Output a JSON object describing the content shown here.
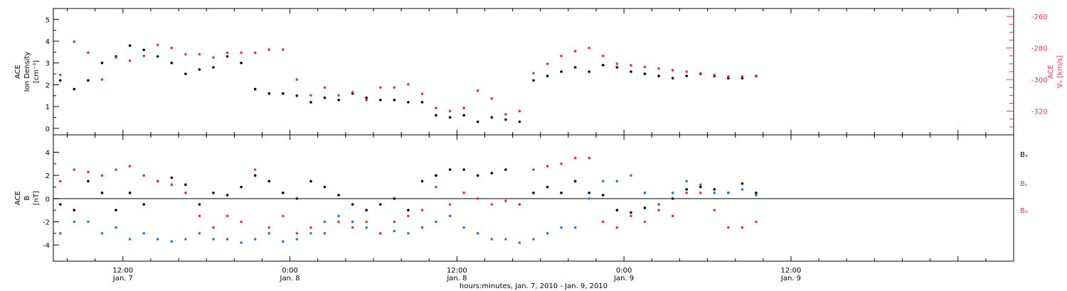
{
  "colors": {
    "black": "#000000",
    "red": "#e0305a",
    "blue": "#1f7fd8"
  },
  "xaxis": {
    "title": "hours:minutes, Jan.  7, 2010 - Jan.  9, 2010",
    "range_hours": [
      -17,
      52
    ],
    "ticks": [
      {
        "hour": -12,
        "time": "12:00",
        "date": "Jan. 7"
      },
      {
        "hour": 0,
        "time": "0:00",
        "date": "Jan. 8"
      },
      {
        "hour": 12,
        "time": "12:00",
        "date": "Jan. 8"
      },
      {
        "hour": 24,
        "time": "0:00",
        "date": "Jan. 9"
      },
      {
        "hour": 36,
        "time": "12:00",
        "date": "Jan. 9"
      }
    ]
  },
  "chart_data": [
    {
      "type": "scatter",
      "panel": "top",
      "left_axis": {
        "label_line1": "ACE",
        "label_line2": "Ion Density",
        "label_line3": "[cm⁻³]",
        "ylim": [
          -0.3,
          5.5
        ],
        "ticks": [
          "0",
          "1",
          "2",
          "3",
          "4",
          "5"
        ]
      },
      "right_axis": {
        "label_line1": "ACE",
        "label_line2": "Vₓ [km/s]",
        "ylim": [
          -335,
          -255
        ],
        "ticks": [
          "-260",
          "-280",
          "-300",
          "-320"
        ]
      },
      "series": [
        {
          "color": "black",
          "axis": "left",
          "x": [
            -16.5,
            -15.5,
            -14.5,
            -13.5,
            -12.5,
            -11.5,
            -10.5,
            -9.5,
            -8.5,
            -7.5,
            -6.5,
            -5.5,
            -4.5,
            -3.5,
            -2.5,
            -1.5,
            -0.5,
            0.5,
            1.5,
            2.5,
            3.5,
            4.5,
            5.5,
            6.5,
            7.5,
            8.5,
            9.5,
            10.5,
            11.5,
            12.5,
            13.5,
            14.5,
            15.5,
            16.5,
            17.5,
            18.5,
            19.5,
            20.5,
            21.5,
            22.5,
            23.5,
            24.5,
            25.5,
            26.5,
            27.5,
            28.5,
            29.5,
            30.5,
            31.5,
            32.5,
            33.5
          ],
          "y": [
            2.2,
            1.8,
            2.2,
            3.0,
            3.3,
            3.8,
            3.6,
            3.3,
            3.0,
            2.5,
            2.7,
            2.8,
            3.3,
            3.0,
            1.8,
            1.6,
            1.6,
            1.5,
            1.2,
            1.4,
            1.3,
            1.6,
            1.4,
            1.3,
            1.3,
            1.2,
            1.2,
            0.6,
            0.5,
            0.6,
            0.3,
            0.5,
            0.4,
            0.3,
            2.2,
            2.4,
            2.6,
            2.8,
            2.6,
            2.9,
            2.8,
            2.6,
            2.5,
            2.4,
            2.3,
            2.4,
            2.5,
            2.4,
            2.3,
            2.3,
            2.4
          ]
        },
        {
          "color": "red",
          "axis": "right",
          "x": [
            -16.5,
            -15.5,
            -14.5,
            -13.5,
            -12.5,
            -11.5,
            -10.5,
            -9.5,
            -8.5,
            -7.5,
            -6.5,
            -5.5,
            -4.5,
            -3.5,
            -2.5,
            -1.5,
            -0.5,
            0.5,
            1.5,
            2.5,
            3.5,
            4.5,
            5.5,
            6.5,
            7.5,
            8.5,
            9.5,
            10.5,
            11.5,
            12.5,
            13.5,
            14.5,
            15.5,
            16.5,
            17.5,
            18.5,
            19.5,
            20.5,
            21.5,
            22.5,
            23.5,
            24.5,
            25.5,
            26.5,
            27.5,
            28.5,
            29.5,
            30.5,
            31.5,
            32.5,
            33.5
          ],
          "y": [
            -297,
            -276,
            -283,
            -300,
            -286,
            -288,
            -285,
            -278,
            -280,
            -284,
            -284,
            -286,
            -283,
            -283,
            -283,
            -281,
            -281,
            -300,
            -310,
            -305,
            -310,
            -308,
            -313,
            -305,
            -305,
            -303,
            -309,
            -318,
            -320,
            -318,
            -307,
            -312,
            -322,
            -320,
            -296,
            -290,
            -285,
            -282,
            -280,
            -285,
            -290,
            -291,
            -292,
            -293,
            -294,
            -295,
            -296,
            -297,
            -298,
            -298,
            -298
          ]
        }
      ]
    },
    {
      "type": "scatter",
      "panel": "bottom",
      "left_axis": {
        "label_line1": "ACE",
        "label_line2": "B",
        "label_line3": "[nT]",
        "ylim": [
          -5.4,
          5.5
        ],
        "ticks": [
          "-4",
          "-2",
          "0",
          "2",
          "4"
        ]
      },
      "legend": [
        {
          "label": "Bₓ",
          "color": "black"
        },
        {
          "label": "Bᵧ",
          "color": "blue"
        },
        {
          "label": "Bₔ",
          "color": "red"
        }
      ],
      "series": [
        {
          "color": "black",
          "x": [
            -16.5,
            -15.5,
            -14.5,
            -13.5,
            -12.5,
            -11.5,
            -10.5,
            -9.5,
            -8.5,
            -7.5,
            -6.5,
            -5.5,
            -4.5,
            -3.5,
            -2.5,
            -1.5,
            -0.5,
            0.5,
            1.5,
            2.5,
            3.5,
            4.5,
            5.5,
            6.5,
            7.5,
            8.5,
            9.5,
            10.5,
            11.5,
            12.5,
            13.5,
            14.5,
            15.5,
            16.5,
            17.5,
            18.5,
            19.5,
            20.5,
            21.5,
            22.5,
            23.5,
            24.5,
            25.5,
            26.5,
            27.5,
            28.5,
            29.5,
            30.5,
            31.5,
            32.5,
            33.5
          ],
          "y": [
            -0.5,
            -1.0,
            1.5,
            0.5,
            -1.0,
            0.5,
            -0.5,
            1.5,
            1.8,
            1.2,
            -0.5,
            0.5,
            0.3,
            1.0,
            2.0,
            1.5,
            0.5,
            0.0,
            1.5,
            1.0,
            0.3,
            -0.5,
            -1.0,
            -0.5,
            0.0,
            -1.0,
            1.5,
            2.0,
            2.5,
            2.5,
            2.0,
            2.2,
            2.5,
            -0.5,
            0.5,
            1.0,
            0.5,
            1.5,
            0.5,
            0.3,
            -1.0,
            -1.2,
            -0.8,
            -0.5,
            0.0,
            0.8,
            1.0,
            0.8,
            0.5,
            1.3,
            0.5
          ]
        },
        {
          "color": "blue",
          "x": [
            -16.5,
            -15.5,
            -14.5,
            -13.5,
            -12.5,
            -11.5,
            -10.5,
            -9.5,
            -8.5,
            -7.5,
            -6.5,
            -5.5,
            -4.5,
            -3.5,
            -2.5,
            -1.5,
            -0.5,
            0.5,
            1.5,
            2.5,
            3.5,
            4.5,
            5.5,
            6.5,
            7.5,
            8.5,
            9.5,
            10.5,
            11.5,
            12.5,
            13.5,
            14.5,
            15.5,
            16.5,
            17.5,
            18.5,
            19.5,
            20.5,
            21.5,
            22.5,
            23.5,
            24.5,
            25.5,
            26.5,
            27.5,
            28.5,
            29.5,
            30.5,
            31.5,
            32.5,
            33.5
          ],
          "y": [
            -3.0,
            -2.0,
            -2.0,
            -3.0,
            -2.5,
            -3.5,
            -3.0,
            -3.5,
            -3.7,
            -3.5,
            -3.0,
            -3.5,
            -3.5,
            -3.8,
            -3.5,
            -3.0,
            -3.7,
            -3.5,
            -3.0,
            -2.0,
            -1.5,
            -2.0,
            -2.5,
            -3.0,
            -2.8,
            -3.0,
            -2.5,
            -2.0,
            -1.5,
            -2.5,
            -3.0,
            -3.5,
            -3.5,
            -3.8,
            -3.5,
            -3.0,
            -2.5,
            -2.5,
            0.0,
            1.5,
            1.5,
            2.0,
            0.5,
            -0.5,
            0.5,
            1.5,
            1.2,
            0.5,
            0.5,
            0.8,
            0.3
          ]
        },
        {
          "color": "red",
          "x": [
            -16.5,
            -15.5,
            -14.5,
            -13.5,
            -12.5,
            -11.5,
            -10.5,
            -9.5,
            -8.5,
            -7.5,
            -6.5,
            -5.5,
            -4.5,
            -3.5,
            -2.5,
            -1.5,
            -0.5,
            0.5,
            1.5,
            2.5,
            3.5,
            4.5,
            5.5,
            6.5,
            7.5,
            8.5,
            9.5,
            10.5,
            11.5,
            12.5,
            13.5,
            14.5,
            15.5,
            16.5,
            17.5,
            18.5,
            19.5,
            20.5,
            21.5,
            22.5,
            23.5,
            24.5,
            25.5,
            26.5,
            27.5,
            28.5,
            29.5,
            30.5,
            31.5,
            32.5,
            33.5
          ],
          "y": [
            1.5,
            2.5,
            2.3,
            2.0,
            2.5,
            2.8,
            2.0,
            1.5,
            1.2,
            0.5,
            -1.5,
            -2.5,
            -1.5,
            -2.0,
            2.5,
            -2.5,
            -1.5,
            -3.0,
            -2.5,
            -3.0,
            -2.0,
            -2.5,
            -2.0,
            -3.0,
            -2.0,
            -1.5,
            -1.0,
            1.0,
            -0.5,
            0.5,
            0.0,
            -0.5,
            -0.2,
            -0.5,
            2.5,
            2.8,
            3.0,
            3.5,
            3.5,
            -2.0,
            -2.5,
            -1.5,
            -2.0,
            -1.0,
            -1.5,
            0.5,
            0.5,
            -1.0,
            -2.5,
            -2.5,
            -2.0
          ]
        }
      ]
    }
  ]
}
